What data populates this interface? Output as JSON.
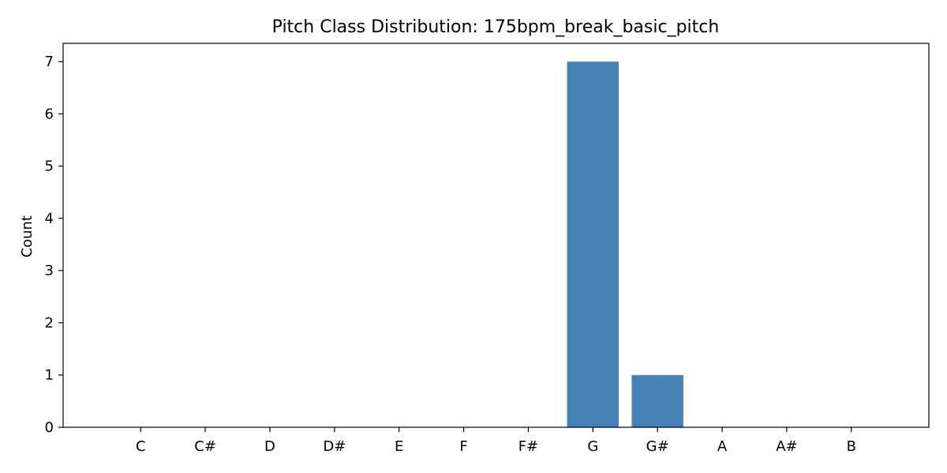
{
  "chart_data": {
    "type": "bar",
    "title": "Pitch Class Distribution: 175bpm_break_basic_pitch",
    "xlabel": "",
    "ylabel": "Count",
    "categories": [
      "C",
      "C#",
      "D",
      "D#",
      "E",
      "F",
      "F#",
      "G",
      "G#",
      "A",
      "A#",
      "B"
    ],
    "values": [
      0,
      0,
      0,
      0,
      0,
      0,
      0,
      7,
      1,
      0,
      0,
      0
    ],
    "ylim": [
      0,
      7.35
    ],
    "yticks": [
      0,
      1,
      2,
      3,
      4,
      5,
      6,
      7
    ],
    "grid": false,
    "bar_color": "#4682b4"
  }
}
